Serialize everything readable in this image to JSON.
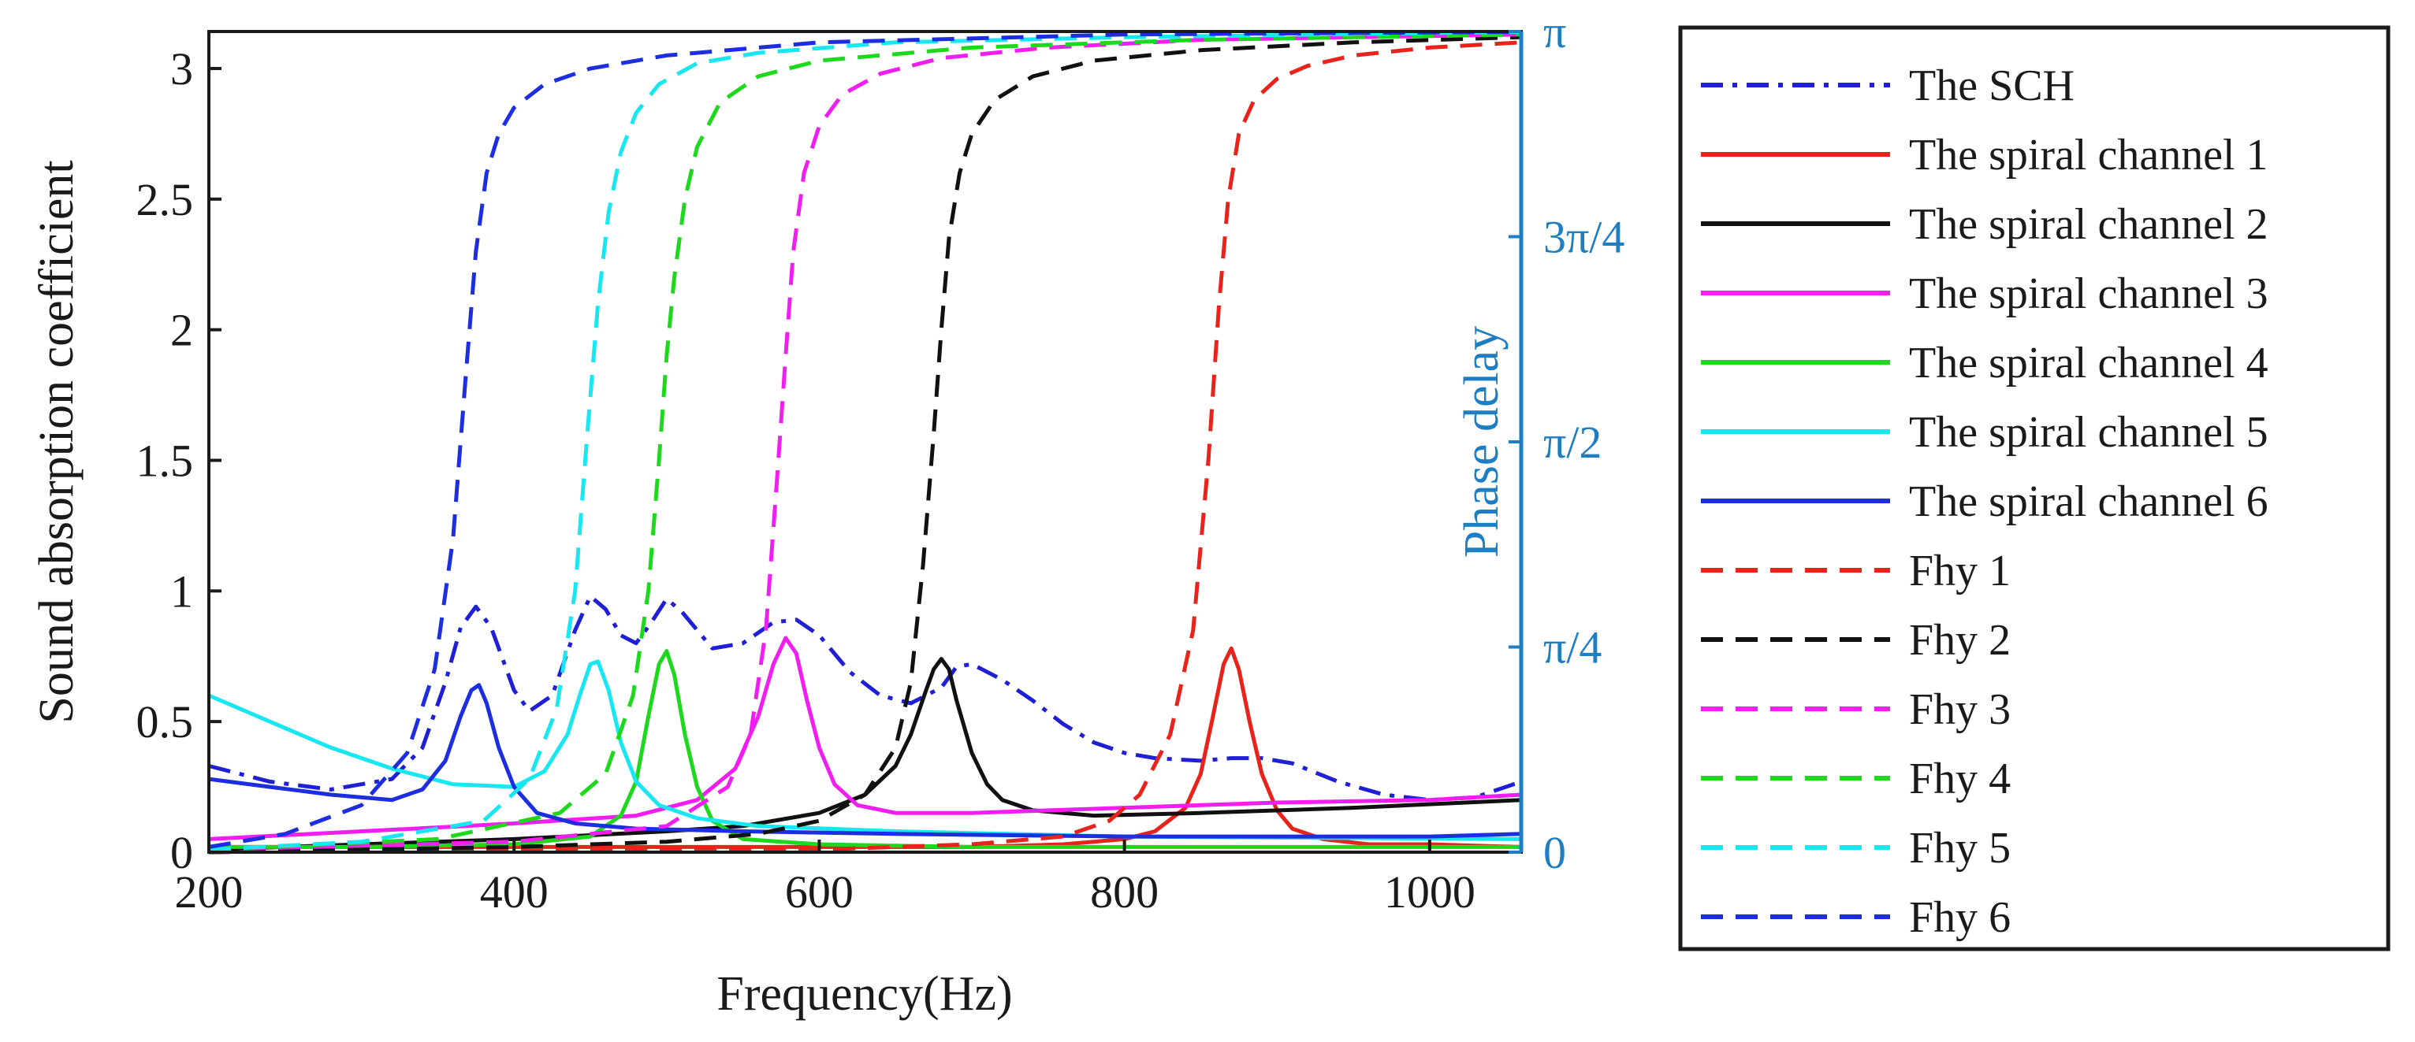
{
  "chart_data": {
    "type": "line",
    "title": "",
    "xlabel": "Frequency(Hz)",
    "ylabel": "Sound absorption coefficient",
    "y2label": "Phase delay",
    "xlim": [
      200,
      1060
    ],
    "ylim": [
      0,
      3.14159
    ],
    "y2lim": [
      0,
      3.14159
    ],
    "grid": false,
    "legend_position": "outside-right",
    "x_ticks": [
      200,
      400,
      600,
      800,
      1000
    ],
    "x_tick_labels": [
      "200",
      "400",
      "600",
      "800",
      "1000"
    ],
    "y_ticks": [
      0,
      0.5,
      1,
      1.5,
      2,
      2.5,
      3
    ],
    "y_tick_labels": [
      "0",
      "0.5",
      "1",
      "1.5",
      "2",
      "2.5",
      "3"
    ],
    "y2_ticks": [
      0,
      0.7854,
      1.5708,
      2.3562,
      3.14159
    ],
    "y2_tick_labels": [
      "0",
      "π/4",
      "π/2",
      "3π/4",
      "π"
    ],
    "series": [
      {
        "name": "The SCH",
        "color": "#1f1fd6",
        "dash": "dashdot",
        "x": [
          200,
          240,
          280,
          320,
          340,
          355,
          365,
          375,
          385,
          400,
          410,
          425,
          440,
          450,
          460,
          470,
          480,
          490,
          500,
          510,
          530,
          550,
          570,
          585,
          600,
          620,
          640,
          660,
          680,
          690,
          700,
          720,
          740,
          760,
          780,
          800,
          820,
          850,
          870,
          890,
          910,
          940,
          970,
          1000,
          1030,
          1060
        ],
        "y": [
          0.33,
          0.27,
          0.24,
          0.28,
          0.4,
          0.65,
          0.86,
          0.94,
          0.86,
          0.62,
          0.54,
          0.6,
          0.85,
          0.98,
          0.93,
          0.83,
          0.8,
          0.88,
          0.97,
          0.92,
          0.78,
          0.8,
          0.88,
          0.89,
          0.83,
          0.69,
          0.6,
          0.57,
          0.63,
          0.71,
          0.72,
          0.66,
          0.58,
          0.49,
          0.42,
          0.38,
          0.36,
          0.35,
          0.36,
          0.36,
          0.34,
          0.27,
          0.22,
          0.2,
          0.21,
          0.27
        ]
      },
      {
        "name": "The spiral channel 1",
        "color": "#e8231c",
        "dash": "solid",
        "x": [
          200,
          300,
          400,
          500,
          600,
          700,
          760,
          800,
          820,
          840,
          850,
          858,
          865,
          870,
          875,
          882,
          890,
          900,
          910,
          930,
          960,
          1000,
          1060
        ],
        "y": [
          0.02,
          0.02,
          0.02,
          0.02,
          0.02,
          0.02,
          0.03,
          0.05,
          0.08,
          0.17,
          0.3,
          0.52,
          0.72,
          0.78,
          0.7,
          0.5,
          0.3,
          0.16,
          0.09,
          0.05,
          0.03,
          0.03,
          0.02
        ]
      },
      {
        "name": "The spiral channel 2",
        "color": "#111111",
        "dash": "solid",
        "x": [
          200,
          300,
          400,
          500,
          550,
          600,
          630,
          650,
          660,
          670,
          675,
          680,
          685,
          690,
          700,
          710,
          720,
          740,
          780,
          850,
          950,
          1060
        ],
        "y": [
          0.01,
          0.03,
          0.05,
          0.08,
          0.1,
          0.15,
          0.22,
          0.33,
          0.45,
          0.62,
          0.7,
          0.74,
          0.7,
          0.58,
          0.38,
          0.26,
          0.2,
          0.16,
          0.14,
          0.15,
          0.17,
          0.2
        ]
      },
      {
        "name": "The spiral channel 3",
        "color": "#f01ef0",
        "dash": "solid",
        "x": [
          200,
          300,
          400,
          480,
          520,
          545,
          560,
          570,
          578,
          585,
          592,
          600,
          610,
          625,
          650,
          700,
          800,
          900,
          1000,
          1060
        ],
        "y": [
          0.05,
          0.08,
          0.11,
          0.14,
          0.2,
          0.32,
          0.52,
          0.72,
          0.82,
          0.76,
          0.58,
          0.4,
          0.26,
          0.18,
          0.15,
          0.15,
          0.17,
          0.19,
          0.2,
          0.22
        ]
      },
      {
        "name": "The spiral channel 4",
        "color": "#1ed81e",
        "dash": "solid",
        "x": [
          200,
          300,
          400,
          450,
          470,
          480,
          488,
          495,
          500,
          505,
          512,
          520,
          530,
          550,
          600,
          700,
          800,
          1060
        ],
        "y": [
          0.02,
          0.02,
          0.03,
          0.06,
          0.14,
          0.27,
          0.52,
          0.72,
          0.77,
          0.68,
          0.45,
          0.25,
          0.12,
          0.05,
          0.03,
          0.02,
          0.02,
          0.02
        ]
      },
      {
        "name": "The spiral channel 5",
        "color": "#18e6f0",
        "dash": "solid",
        "x": [
          200,
          240,
          280,
          320,
          360,
          400,
          420,
          435,
          443,
          450,
          455,
          462,
          470,
          480,
          495,
          520,
          560,
          650,
          800,
          1060
        ],
        "y": [
          0.6,
          0.5,
          0.4,
          0.32,
          0.26,
          0.25,
          0.31,
          0.45,
          0.6,
          0.72,
          0.73,
          0.62,
          0.42,
          0.27,
          0.18,
          0.13,
          0.1,
          0.08,
          0.06,
          0.05
        ]
      },
      {
        "name": "The spiral channel 6",
        "color": "#1c2ee0",
        "dash": "solid",
        "x": [
          200,
          240,
          280,
          320,
          340,
          355,
          365,
          372,
          377,
          382,
          390,
          400,
          415,
          440,
          480,
          550,
          650,
          800,
          1000,
          1060
        ],
        "y": [
          0.28,
          0.25,
          0.22,
          0.2,
          0.24,
          0.35,
          0.52,
          0.62,
          0.64,
          0.57,
          0.4,
          0.25,
          0.15,
          0.11,
          0.09,
          0.08,
          0.07,
          0.06,
          0.06,
          0.07
        ]
      },
      {
        "name": "Fhy 1",
        "color": "#e8231c",
        "dash": "dash",
        "x": [
          200,
          400,
          600,
          700,
          760,
          790,
          810,
          830,
          845,
          855,
          862,
          868,
          875,
          885,
          900,
          920,
          950,
          1000,
          1060
        ],
        "y": [
          0.0,
          0.01,
          0.01,
          0.03,
          0.06,
          0.12,
          0.22,
          0.45,
          0.85,
          1.5,
          2.1,
          2.5,
          2.75,
          2.88,
          2.96,
          3.01,
          3.05,
          3.08,
          3.1
        ]
      },
      {
        "name": "Fhy 2",
        "color": "#111111",
        "dash": "dash",
        "x": [
          200,
          400,
          500,
          560,
          600,
          630,
          650,
          660,
          668,
          675,
          680,
          685,
          692,
          700,
          715,
          740,
          780,
          850,
          950,
          1060
        ],
        "y": [
          0.0,
          0.02,
          0.04,
          0.07,
          0.12,
          0.22,
          0.4,
          0.65,
          1.1,
          1.6,
          2.0,
          2.35,
          2.6,
          2.75,
          2.88,
          2.97,
          3.03,
          3.07,
          3.1,
          3.12
        ]
      },
      {
        "name": "Fhy 3",
        "color": "#f01ef0",
        "dash": "dash",
        "x": [
          200,
          400,
          500,
          540,
          555,
          565,
          572,
          578,
          583,
          590,
          600,
          615,
          640,
          680,
          750,
          850,
          1060
        ],
        "y": [
          0.01,
          0.04,
          0.1,
          0.25,
          0.45,
          0.85,
          1.4,
          1.9,
          2.3,
          2.6,
          2.78,
          2.9,
          2.98,
          3.04,
          3.08,
          3.11,
          3.13
        ]
      },
      {
        "name": "Fhy 4",
        "color": "#1ed81e",
        "dash": "dash",
        "x": [
          200,
          350,
          430,
          460,
          478,
          488,
          495,
          500,
          505,
          512,
          520,
          535,
          560,
          600,
          700,
          850,
          1060
        ],
        "y": [
          0.01,
          0.05,
          0.15,
          0.3,
          0.6,
          1.0,
          1.5,
          1.9,
          2.2,
          2.5,
          2.7,
          2.87,
          2.97,
          3.03,
          3.08,
          3.11,
          3.13
        ]
      },
      {
        "name": "Fhy 5",
        "color": "#18e6f0",
        "dash": "dash",
        "x": [
          200,
          300,
          380,
          410,
          428,
          440,
          448,
          455,
          462,
          470,
          480,
          495,
          520,
          560,
          650,
          800,
          1060
        ],
        "y": [
          0.01,
          0.04,
          0.12,
          0.28,
          0.55,
          1.0,
          1.6,
          2.1,
          2.45,
          2.68,
          2.83,
          2.94,
          3.02,
          3.06,
          3.1,
          3.12,
          3.14
        ]
      },
      {
        "name": "Fhy 6",
        "color": "#1c2ee0",
        "dash": "dash",
        "x": [
          200,
          250,
          300,
          330,
          348,
          360,
          368,
          375,
          382,
          390,
          400,
          420,
          450,
          500,
          600,
          800,
          1060
        ],
        "y": [
          0.02,
          0.07,
          0.18,
          0.38,
          0.7,
          1.2,
          1.8,
          2.3,
          2.6,
          2.75,
          2.85,
          2.94,
          3.0,
          3.05,
          3.1,
          3.13,
          3.14
        ]
      }
    ]
  }
}
